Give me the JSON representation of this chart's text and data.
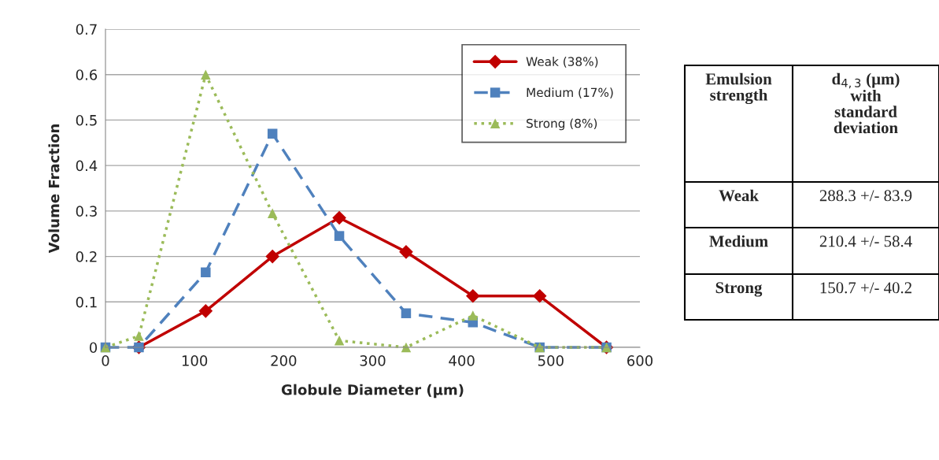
{
  "chart_data": [
    {
      "type": "line",
      "xlabel": "Globule Diameter (µm)",
      "ylabel": "Volume Fraction",
      "xlim": [
        0,
        600
      ],
      "xticks": [
        0,
        100,
        200,
        300,
        400,
        500,
        600
      ],
      "ylim": [
        0,
        0.7
      ],
      "yticks": [
        0,
        0.1,
        0.2,
        0.3,
        0.4,
        0.5,
        0.6,
        0.7
      ],
      "grid": "y",
      "legend": "top right",
      "series": [
        {
          "name": "Weak (38%)",
          "color": "#c00000",
          "marker": "diamond",
          "line_style": "solid",
          "x": [
            37.5,
            112.5,
            187.5,
            262.5,
            337.5,
            412.5,
            487.5,
            562.5
          ],
          "values": [
            0,
            0.08,
            0.2,
            0.285,
            0.21,
            0.113,
            0.113,
            0
          ]
        },
        {
          "name": "Medium (17%)",
          "color": "#4f81bd",
          "marker": "square",
          "line_style": "dashed",
          "x": [
            0,
            37.5,
            112.5,
            187.5,
            262.5,
            337.5,
            412.5,
            487.5,
            562.5
          ],
          "values": [
            0,
            0,
            0.165,
            0.47,
            0.245,
            0.075,
            0.055,
            0,
            0
          ]
        },
        {
          "name": "Strong (8%)",
          "color": "#9bbb59",
          "marker": "triangle",
          "line_style": "dotted",
          "x": [
            0,
            37.5,
            112.5,
            187.5,
            262.5,
            337.5,
            412.5,
            487.5,
            562.5
          ],
          "values": [
            0,
            0.025,
            0.6,
            0.295,
            0.015,
            0,
            0.07,
            0,
            0
          ]
        }
      ]
    },
    {
      "type": "other",
      "annotations": [
        "Emulsion strength",
        "d$_{4,3}$ (µm) with standard deviation",
        "Weak",
        "288.3 +/- 83.9",
        "Medium",
        "210.4 +/- 58.4",
        "Strong",
        "150.7 +/- 40.2"
      ]
    }
  ]
}
